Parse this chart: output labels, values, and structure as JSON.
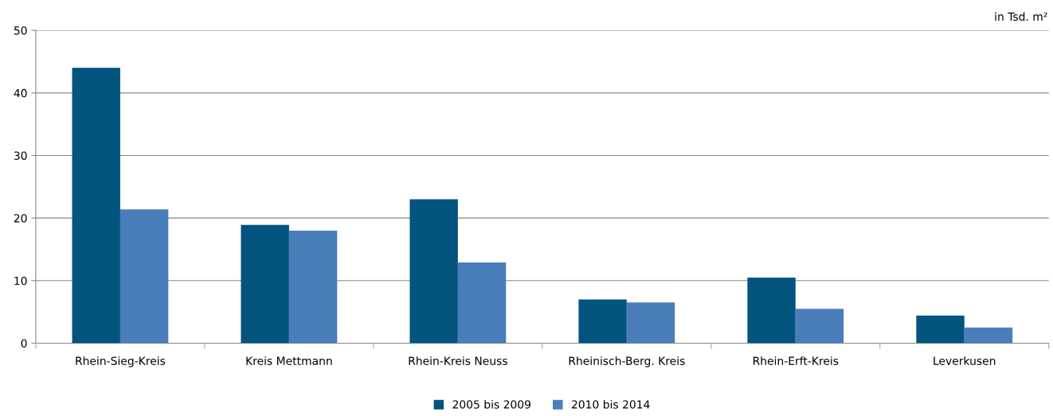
{
  "chart_data": {
    "type": "bar",
    "categories": [
      "Rhein-Sieg-Kreis",
      "Kreis Mettmann",
      "Rhein-Kreis Neuss",
      "Rheinisch-Berg. Kreis",
      "Rhein-Erft-Kreis",
      "Leverkusen"
    ],
    "series": [
      {
        "name": "2005 bis 2009",
        "color": "#03547e",
        "values": [
          44,
          18.9,
          23,
          7,
          10.5,
          4.4
        ]
      },
      {
        "name": "2010 bis 2014",
        "color": "#4a7ebb",
        "values": [
          21.4,
          18,
          12.9,
          6.5,
          5.5,
          2.5
        ]
      }
    ],
    "ylim": [
      0,
      50
    ],
    "yticks": [
      0,
      10,
      20,
      30,
      40,
      50
    ],
    "grid": "y",
    "legend": "bottom",
    "annotations": [
      "in Tsd. m²"
    ]
  }
}
